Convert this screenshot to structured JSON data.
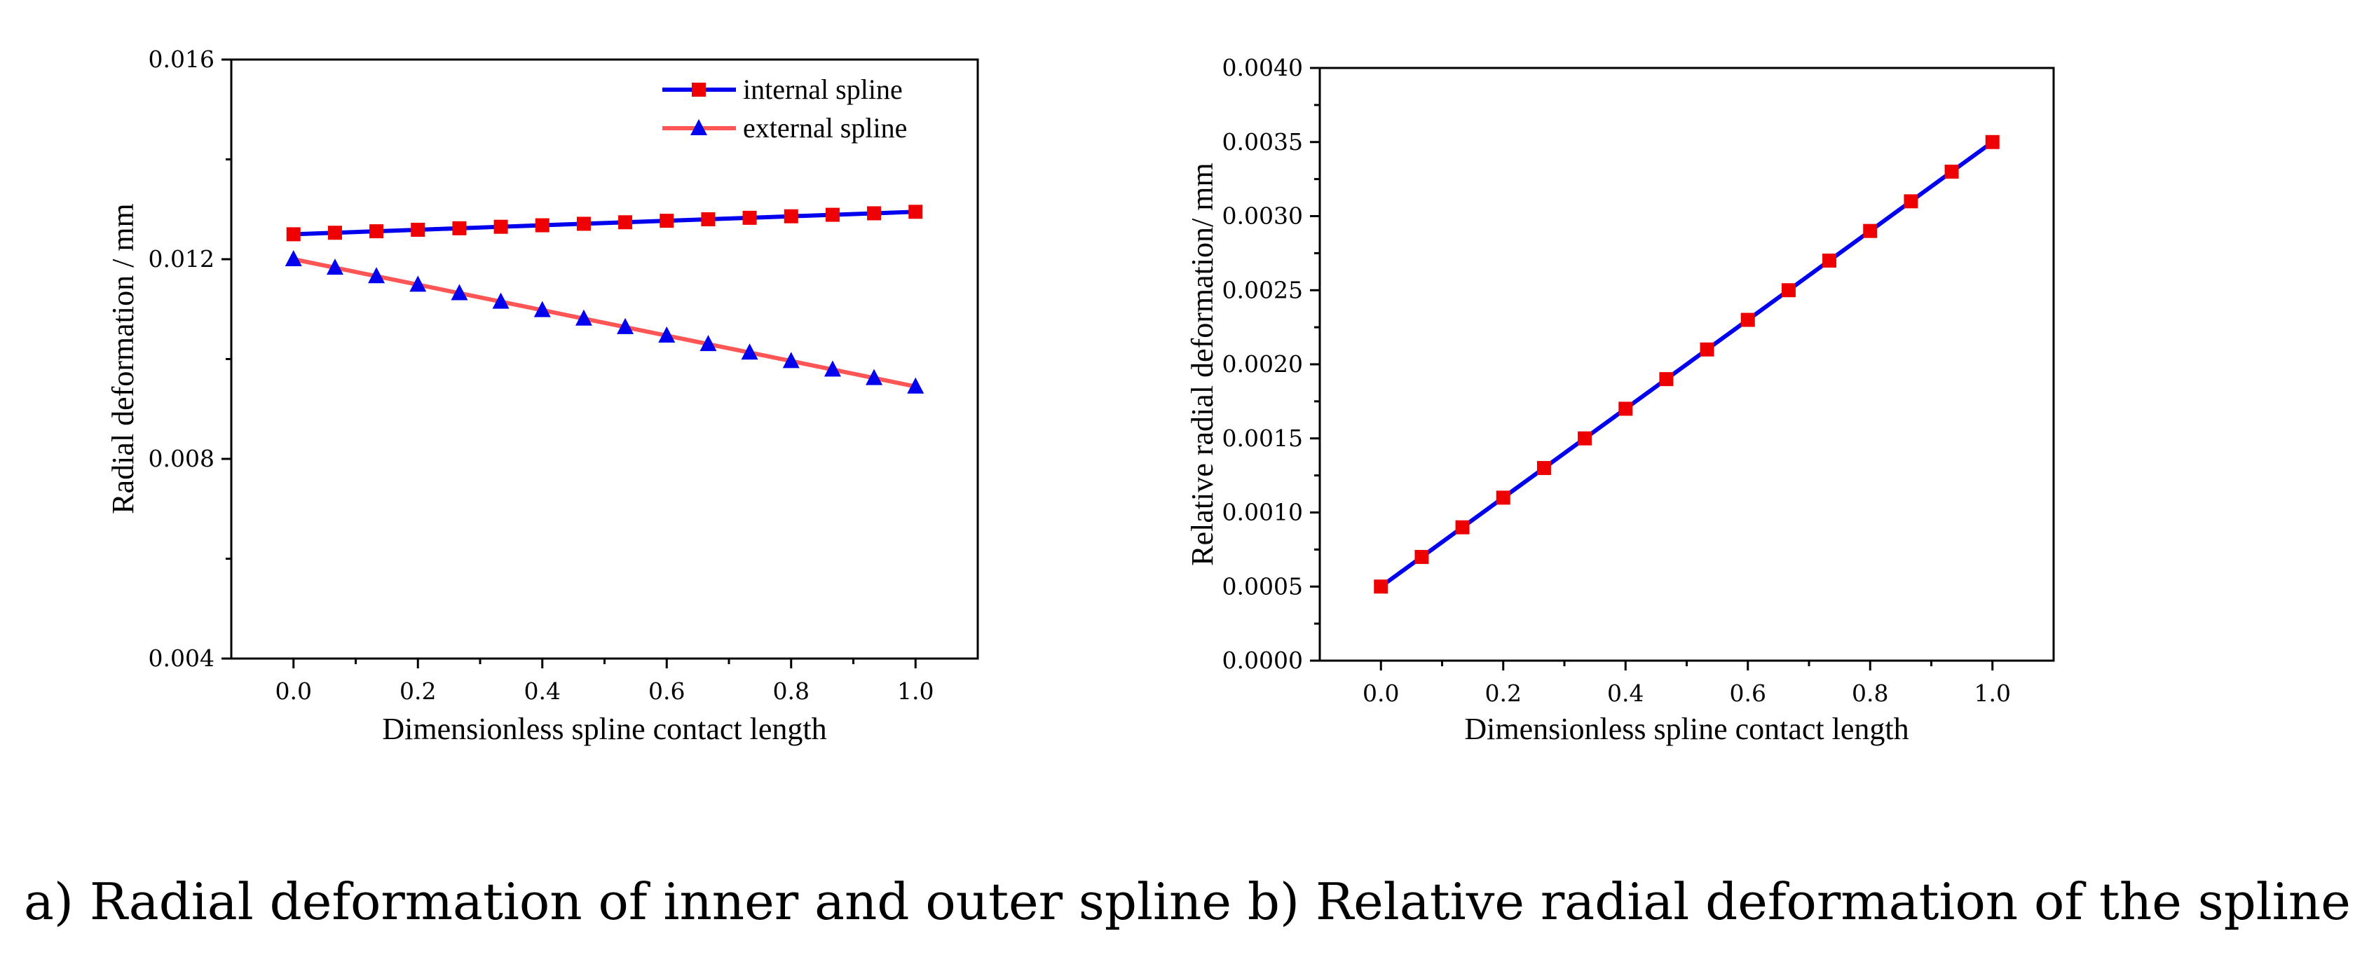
{
  "chart_data": [
    {
      "id": "a",
      "type": "line",
      "title": "",
      "xlabel": "Dimensionless spline contact length",
      "ylabel": "Radial deformation / mm",
      "xlim": [
        -0.1,
        1.1
      ],
      "ylim": [
        0.004,
        0.016
      ],
      "xticks": [
        0.0,
        0.2,
        0.4,
        0.6,
        0.8,
        1.0
      ],
      "xtick_labels": [
        "0.0",
        "0.2",
        "0.4",
        "0.6",
        "0.8",
        "1.0"
      ],
      "yticks": [
        0.004,
        0.008,
        0.012,
        0.016
      ],
      "ytick_labels": [
        "0.004",
        "0.008",
        "0.012",
        "0.016"
      ],
      "legend_position": "top-right",
      "series": [
        {
          "name": "internal spline",
          "line_color": "#0000ee",
          "marker_color": "#ee0000",
          "marker": "square",
          "x": [
            0.0,
            0.0667,
            0.1333,
            0.2,
            0.2667,
            0.3333,
            0.4,
            0.4667,
            0.5333,
            0.6,
            0.6667,
            0.7333,
            0.8,
            0.8667,
            0.9333,
            1.0
          ],
          "y": [
            0.0125,
            0.01253,
            0.01256,
            0.01259,
            0.01262,
            0.01265,
            0.01268,
            0.01271,
            0.01274,
            0.01277,
            0.0128,
            0.01283,
            0.01286,
            0.01289,
            0.01292,
            0.01295
          ]
        },
        {
          "name": "external spline",
          "line_color": "#ff5555",
          "marker_color": "#0000ee",
          "marker": "triangle",
          "x": [
            0.0,
            0.0667,
            0.1333,
            0.2,
            0.2667,
            0.3333,
            0.4,
            0.4667,
            0.5333,
            0.6,
            0.6667,
            0.7333,
            0.8,
            0.8667,
            0.9333,
            1.0
          ],
          "y": [
            0.012,
            0.01183,
            0.01166,
            0.01149,
            0.01132,
            0.01115,
            0.01098,
            0.01081,
            0.01064,
            0.01047,
            0.0103,
            0.01013,
            0.00996,
            0.00979,
            0.00962,
            0.00945
          ]
        }
      ]
    },
    {
      "id": "b",
      "type": "line",
      "title": "",
      "xlabel": "Dimensionless spline contact length",
      "ylabel": "Relative radial deformation/ mm",
      "xlim": [
        -0.1,
        1.1
      ],
      "ylim": [
        0.0,
        0.004
      ],
      "xticks": [
        0.0,
        0.2,
        0.4,
        0.6,
        0.8,
        1.0
      ],
      "xtick_labels": [
        "0.0",
        "0.2",
        "0.4",
        "0.6",
        "0.8",
        "1.0"
      ],
      "yticks": [
        0.0,
        0.0005,
        0.001,
        0.0015,
        0.002,
        0.0025,
        0.003,
        0.0035,
        0.004
      ],
      "ytick_labels": [
        "0.0000",
        "0.0005",
        "0.0010",
        "0.0015",
        "0.0020",
        "0.0025",
        "0.0030",
        "0.0035",
        "0.0040"
      ],
      "series": [
        {
          "name": "relative radial deformation",
          "line_color": "#0000ee",
          "marker_color": "#ee0000",
          "marker": "square",
          "x": [
            0.0,
            0.0667,
            0.1333,
            0.2,
            0.2667,
            0.3333,
            0.4,
            0.4667,
            0.5333,
            0.6,
            0.6667,
            0.7333,
            0.8,
            0.8667,
            0.9333,
            1.0
          ],
          "y": [
            0.0005,
            0.0007,
            0.0009,
            0.0011,
            0.0013,
            0.0015,
            0.0017,
            0.0019,
            0.0021,
            0.0023,
            0.0025,
            0.0027,
            0.0029,
            0.0031,
            0.0033,
            0.0035
          ]
        }
      ]
    }
  ],
  "captions": {
    "a": "a) Radial deformation of inner and outer spline",
    "b": "b) Relative radial deformation of the spline pair"
  }
}
